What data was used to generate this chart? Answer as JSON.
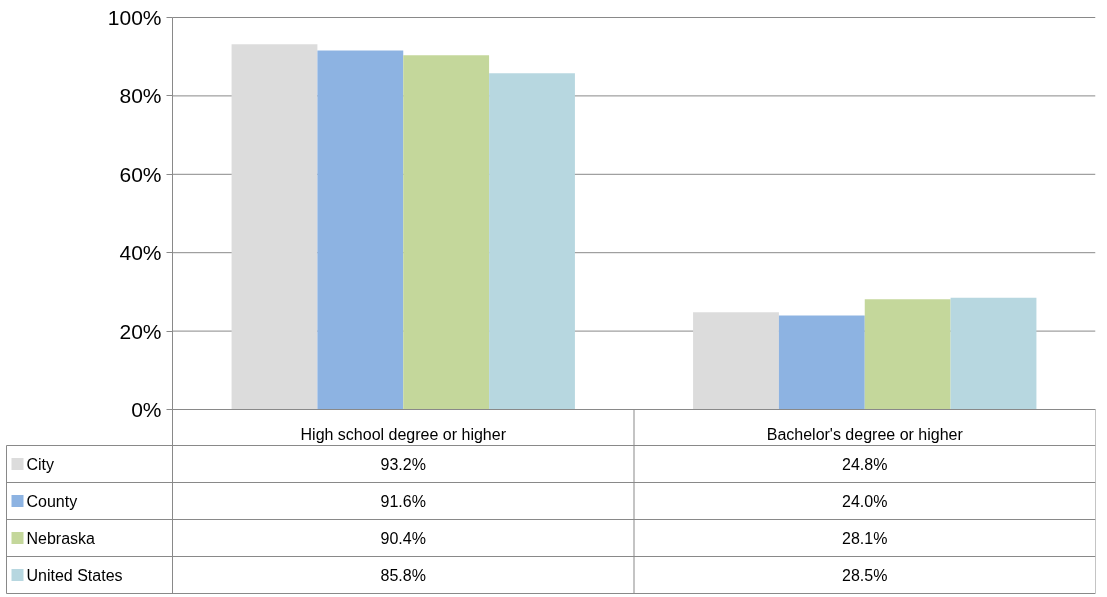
{
  "chart_data": {
    "type": "bar",
    "categories": [
      "High school degree or higher",
      "Bachelor's degree or higher"
    ],
    "series": [
      {
        "name": "City",
        "color": "#dcdcdc",
        "values": [
          93.2,
          24.8
        ],
        "value_labels": [
          "93.2%",
          "24.8%"
        ]
      },
      {
        "name": "County",
        "color": "#8db3e2",
        "values": [
          91.6,
          24.0
        ],
        "value_labels": [
          "91.6%",
          "24.0%"
        ]
      },
      {
        "name": "Nebraska",
        "color": "#c4d79b",
        "values": [
          90.4,
          28.1
        ],
        "value_labels": [
          "90.4%",
          "28.1%"
        ]
      },
      {
        "name": "United States",
        "color": "#b7d7e0",
        "values": [
          85.8,
          28.5
        ],
        "value_labels": [
          "85.8%",
          "28.5%"
        ]
      }
    ],
    "ylim": [
      0,
      100
    ],
    "yticks": [
      {
        "value": 0,
        "label": "0%"
      },
      {
        "value": 20,
        "label": "20%"
      },
      {
        "value": 40,
        "label": "40%"
      },
      {
        "value": 60,
        "label": "60%"
      },
      {
        "value": 80,
        "label": "80%"
      },
      {
        "value": 100,
        "label": "100%"
      }
    ],
    "grid": "y",
    "legend": "bottom"
  }
}
